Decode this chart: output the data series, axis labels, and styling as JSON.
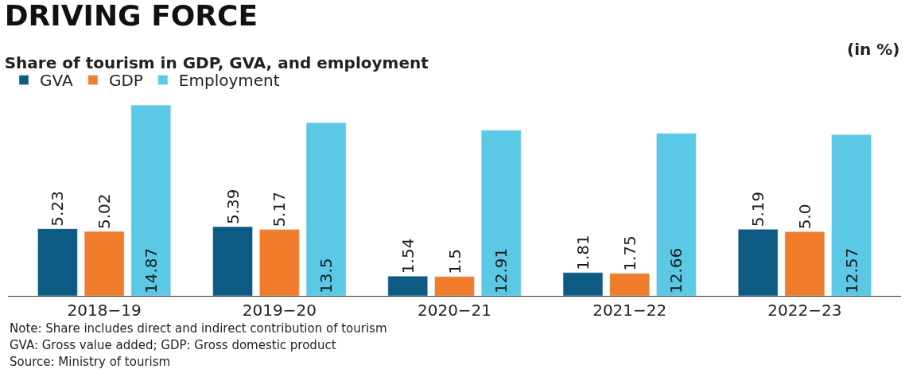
{
  "chart_data": {
    "type": "bar",
    "title": "DRIVING FORCE",
    "subtitle": "Share of tourism in GDP, GVA, and employment",
    "ylabel": "(in %)",
    "categories": [
      "2018−19",
      "2019−20",
      "2020−21",
      "2021−22",
      "2022−23"
    ],
    "series": [
      {
        "name": "GVA",
        "color": "#0d5a82",
        "values": [
          5.23,
          5.39,
          1.54,
          1.81,
          5.19
        ],
        "value_labels": [
          "5.23",
          "5.39",
          "1.54",
          "1.81",
          "5.19"
        ]
      },
      {
        "name": "GDP",
        "color": "#f07d2b",
        "values": [
          5.02,
          5.17,
          1.5,
          1.75,
          5.0
        ],
        "value_labels": [
          "5.02",
          "5.17",
          "1.5",
          "1.75",
          "5.0"
        ]
      },
      {
        "name": "Employment",
        "color": "#5bc8e6",
        "values": [
          14.87,
          13.5,
          12.91,
          12.66,
          12.57
        ],
        "value_labels": [
          "14.87",
          "13.5",
          "12.91",
          "12.66",
          "12.57"
        ]
      }
    ],
    "legend": "top left",
    "annotations": [
      "Note: Share includes direct and indirect contribution of tourism",
      "GVA: Gross value added; GDP: Gross domestic product",
      "Source: Ministry of tourism"
    ]
  }
}
